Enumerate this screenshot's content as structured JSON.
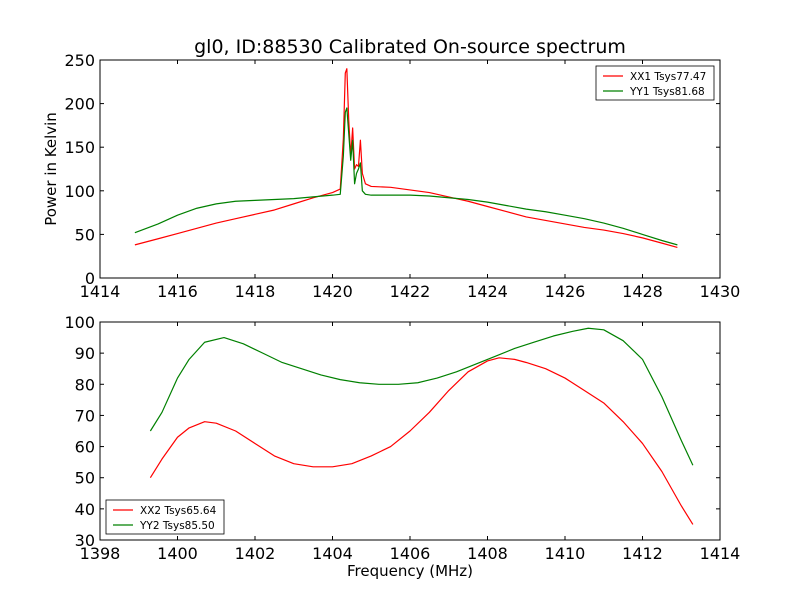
{
  "title": "gl0, ID:88530 Calibrated On-source spectrum",
  "chart_data": [
    {
      "type": "line",
      "ylabel": "Power in Kelvin",
      "xlabel": "",
      "xlim": [
        1414,
        1430
      ],
      "ylim": [
        0,
        250
      ],
      "xticks": [
        1414,
        1416,
        1418,
        1420,
        1422,
        1424,
        1426,
        1428,
        1430
      ],
      "yticks": [
        0,
        50,
        100,
        150,
        200,
        250
      ],
      "grid": false,
      "legend_placement": "top-right",
      "series": [
        {
          "name": "XX1 Tsys77.47",
          "color": "#ff0000",
          "points": [
            [
              1414.9,
              38
            ],
            [
              1415.5,
              45
            ],
            [
              1416,
              51
            ],
            [
              1416.5,
              57
            ],
            [
              1417,
              63
            ],
            [
              1417.5,
              68
            ],
            [
              1418,
              73
            ],
            [
              1418.5,
              78
            ],
            [
              1419,
              85
            ],
            [
              1419.5,
              92
            ],
            [
              1420,
              98
            ],
            [
              1420.2,
              102
            ],
            [
              1420.28,
              160
            ],
            [
              1420.33,
              235
            ],
            [
              1420.37,
              240
            ],
            [
              1420.42,
              180
            ],
            [
              1420.47,
              140
            ],
            [
              1420.52,
              172
            ],
            [
              1420.57,
              125
            ],
            [
              1420.62,
              130
            ],
            [
              1420.67,
              128
            ],
            [
              1420.72,
              158
            ],
            [
              1420.77,
              120
            ],
            [
              1420.85,
              108
            ],
            [
              1421,
              105
            ],
            [
              1421.5,
              104
            ],
            [
              1422,
              101
            ],
            [
              1422.5,
              98
            ],
            [
              1423,
              93
            ],
            [
              1423.5,
              88
            ],
            [
              1424,
              82
            ],
            [
              1424.5,
              76
            ],
            [
              1425,
              70
            ],
            [
              1425.5,
              66
            ],
            [
              1426,
              62
            ],
            [
              1426.5,
              58
            ],
            [
              1427,
              55
            ],
            [
              1427.5,
              51
            ],
            [
              1428,
              46
            ],
            [
              1428.5,
              40
            ],
            [
              1428.9,
              35
            ]
          ]
        },
        {
          "name": "YY1 Tsys81.68",
          "color": "#008000",
          "points": [
            [
              1414.9,
              52
            ],
            [
              1415.5,
              62
            ],
            [
              1416,
              72
            ],
            [
              1416.5,
              80
            ],
            [
              1417,
              85
            ],
            [
              1417.5,
              88
            ],
            [
              1418,
              89
            ],
            [
              1418.5,
              90
            ],
            [
              1419,
              91
            ],
            [
              1419.5,
              93
            ],
            [
              1420,
              95
            ],
            [
              1420.2,
              96
            ],
            [
              1420.28,
              140
            ],
            [
              1420.33,
              190
            ],
            [
              1420.37,
              195
            ],
            [
              1420.42,
              165
            ],
            [
              1420.47,
              135
            ],
            [
              1420.52,
              158
            ],
            [
              1420.57,
              108
            ],
            [
              1420.62,
              120
            ],
            [
              1420.67,
              125
            ],
            [
              1420.72,
              132
            ],
            [
              1420.77,
              100
            ],
            [
              1420.85,
              96
            ],
            [
              1421,
              95
            ],
            [
              1421.5,
              95
            ],
            [
              1422,
              95
            ],
            [
              1422.5,
              94
            ],
            [
              1423,
              92
            ],
            [
              1423.5,
              90
            ],
            [
              1424,
              87
            ],
            [
              1424.5,
              83
            ],
            [
              1425,
              79
            ],
            [
              1425.5,
              76
            ],
            [
              1426,
              72
            ],
            [
              1426.5,
              68
            ],
            [
              1427,
              63
            ],
            [
              1427.5,
              57
            ],
            [
              1428,
              50
            ],
            [
              1428.5,
              43
            ],
            [
              1428.9,
              38
            ]
          ]
        }
      ]
    },
    {
      "type": "line",
      "ylabel": "",
      "xlabel": "Frequency (MHz)",
      "xlim": [
        1398,
        1414
      ],
      "ylim": [
        30,
        100
      ],
      "xticks": [
        1398,
        1400,
        1402,
        1404,
        1406,
        1408,
        1410,
        1412,
        1414
      ],
      "yticks": [
        30,
        40,
        50,
        60,
        70,
        80,
        90,
        100
      ],
      "grid": false,
      "legend_placement": "bottom-left",
      "series": [
        {
          "name": "XX2 Tsys65.64",
          "color": "#ff0000",
          "points": [
            [
              1399.3,
              50
            ],
            [
              1399.6,
              56
            ],
            [
              1400,
              63
            ],
            [
              1400.3,
              66
            ],
            [
              1400.7,
              68
            ],
            [
              1401,
              67.5
            ],
            [
              1401.5,
              65
            ],
            [
              1402,
              61
            ],
            [
              1402.5,
              57
            ],
            [
              1403,
              54.5
            ],
            [
              1403.5,
              53.5
            ],
            [
              1404,
              53.5
            ],
            [
              1404.5,
              54.5
            ],
            [
              1405,
              57
            ],
            [
              1405.5,
              60
            ],
            [
              1406,
              65
            ],
            [
              1406.5,
              71
            ],
            [
              1407,
              78
            ],
            [
              1407.5,
              84
            ],
            [
              1408,
              87.5
            ],
            [
              1408.3,
              88.5
            ],
            [
              1408.7,
              88
            ],
            [
              1409,
              87
            ],
            [
              1409.5,
              85
            ],
            [
              1410,
              82
            ],
            [
              1410.5,
              78
            ],
            [
              1411,
              74
            ],
            [
              1411.5,
              68
            ],
            [
              1412,
              61
            ],
            [
              1412.5,
              52
            ],
            [
              1413,
              41
            ],
            [
              1413.3,
              35
            ]
          ]
        },
        {
          "name": "YY2 Tsys85.50",
          "color": "#008000",
          "points": [
            [
              1399.3,
              65
            ],
            [
              1399.6,
              71
            ],
            [
              1400,
              82
            ],
            [
              1400.3,
              88
            ],
            [
              1400.7,
              93.5
            ],
            [
              1401.2,
              95
            ],
            [
              1401.7,
              93
            ],
            [
              1402.2,
              90
            ],
            [
              1402.7,
              87
            ],
            [
              1403.2,
              85
            ],
            [
              1403.7,
              83
            ],
            [
              1404.2,
              81.5
            ],
            [
              1404.7,
              80.5
            ],
            [
              1405.2,
              80
            ],
            [
              1405.7,
              80
            ],
            [
              1406.2,
              80.5
            ],
            [
              1406.7,
              82
            ],
            [
              1407.2,
              84
            ],
            [
              1407.7,
              86.5
            ],
            [
              1408.2,
              89
            ],
            [
              1408.7,
              91.5
            ],
            [
              1409.2,
              93.5
            ],
            [
              1409.7,
              95.5
            ],
            [
              1410.2,
              97
            ],
            [
              1410.6,
              98
            ],
            [
              1411,
              97.5
            ],
            [
              1411.5,
              94
            ],
            [
              1412,
              88
            ],
            [
              1412.5,
              76
            ],
            [
              1413,
              62
            ],
            [
              1413.3,
              54
            ]
          ]
        }
      ]
    }
  ]
}
